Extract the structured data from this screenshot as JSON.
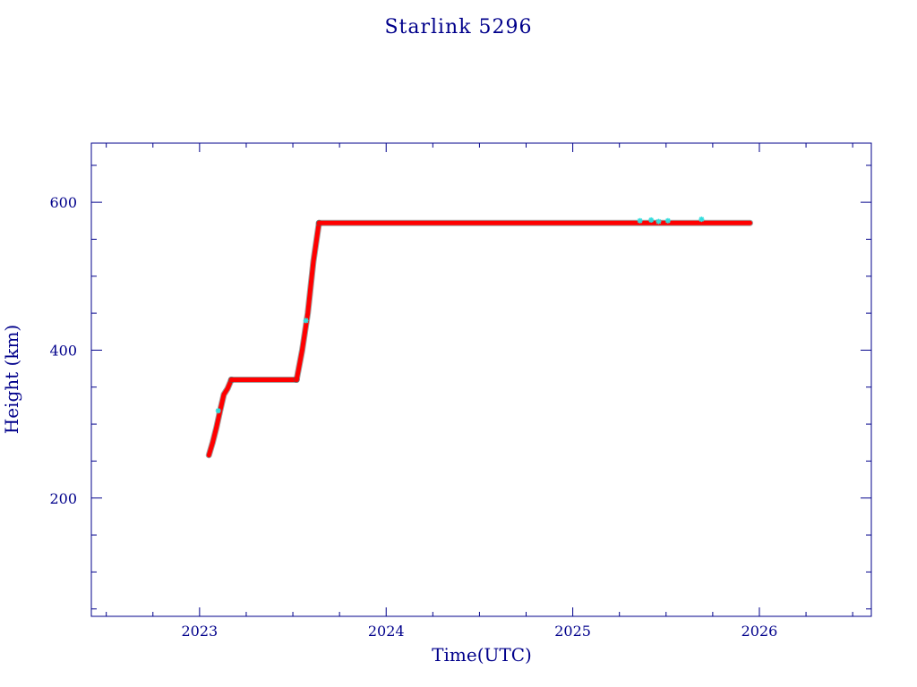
{
  "chart_data": {
    "type": "scatter",
    "title": "Starlink 5296",
    "xlabel": "Time(UTC)",
    "ylabel": "Height (km)",
    "xlim": [
      2022.42,
      2026.6
    ],
    "ylim": [
      40,
      680
    ],
    "x_ticks": [
      2023,
      2024,
      2025,
      2026
    ],
    "x_tick_labels": [
      "2023",
      "2024",
      "2025",
      "2026"
    ],
    "y_ticks": [
      200,
      400,
      600
    ],
    "y_tick_labels": [
      "200",
      "400",
      "600"
    ],
    "grid": false,
    "legend": "none",
    "colors": {
      "axis": "#00008b",
      "main": "#ff0000",
      "edge": "#555555",
      "highlight": "#33dddd"
    },
    "series": [
      {
        "color": "#ff0000",
        "segments": [
          {
            "x": [
              2023.05,
              2023.07,
              2023.09,
              2023.11,
              2023.13,
              2023.15,
              2023.17
            ],
            "y": [
              258,
              275,
              295,
              318,
              340,
              348,
              360
            ]
          },
          {
            "x": [
              2023.17,
              2023.52
            ],
            "y": [
              360,
              360
            ]
          },
          {
            "x": [
              2023.52,
              2023.55,
              2023.58,
              2023.61,
              2023.64
            ],
            "y": [
              360,
              400,
              450,
              520,
              572
            ]
          },
          {
            "x": [
              2023.64,
              2025.95
            ],
            "y": [
              572,
              572
            ]
          }
        ]
      },
      {
        "color": "#33dddd",
        "x": [
          2023.1,
          2023.57,
          2025.36,
          2025.42,
          2025.46,
          2025.51,
          2025.69
        ],
        "y": [
          318,
          440,
          575,
          576,
          574,
          575,
          577
        ]
      }
    ]
  }
}
